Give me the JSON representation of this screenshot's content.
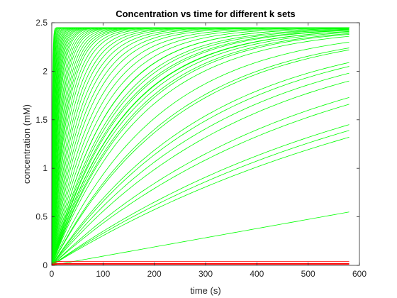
{
  "chart_data": {
    "type": "line",
    "title": "Concentration vs time for different k sets",
    "xlabel": "time (s)",
    "ylabel": "concentration (mM)",
    "xlim": [
      0,
      600
    ],
    "ylim": [
      0,
      2.5
    ],
    "x_ticks": [
      0,
      100,
      200,
      300,
      400,
      500,
      600
    ],
    "x_tick_labels": [
      "0",
      "100",
      "200",
      "300",
      "400",
      "500",
      "600"
    ],
    "y_ticks": [
      0,
      0.5,
      1,
      1.5,
      2,
      2.5
    ],
    "y_tick_labels": [
      "0",
      "0.5",
      "1",
      "1.5",
      "2",
      "2.5"
    ],
    "grid": false,
    "legend": "none",
    "t_end": 580,
    "colors": {
      "rising": "#00ff00",
      "flat": "#ff0000",
      "axis": "#262626"
    },
    "series": [
      {
        "color": "green",
        "model": "saturating",
        "final": 2.45,
        "tau": [
          1.2,
          1.5,
          1.8,
          2.1,
          2.5,
          2.9,
          3.3,
          3.8,
          4.3,
          4.8,
          5.4,
          6,
          6.6,
          7.2,
          7.9,
          8.6,
          9.4,
          10.2,
          11,
          12,
          13,
          14,
          15.5,
          17,
          18.5,
          20,
          22,
          24,
          26,
          28,
          30,
          33,
          36,
          40,
          44,
          48,
          53,
          58,
          64,
          70,
          78,
          86,
          95,
          105,
          115,
          128,
          142,
          158
        ]
      },
      {
        "color": "green",
        "model": "end_value",
        "end_values": [
          2.44,
          2.43,
          2.42,
          2.41,
          2.4,
          2.38,
          2.36,
          2.3,
          2.24,
          2.22,
          2.09,
          2.05,
          1.98,
          1.9,
          1.73,
          1.66,
          1.45,
          1.39,
          1.32
        ]
      },
      {
        "color": "green",
        "model": "linear",
        "end_values": [
          0.55
        ]
      },
      {
        "color": "red",
        "model": "flat",
        "end_values": [
          0.04,
          0.02,
          0.015,
          0.01
        ]
      }
    ]
  }
}
